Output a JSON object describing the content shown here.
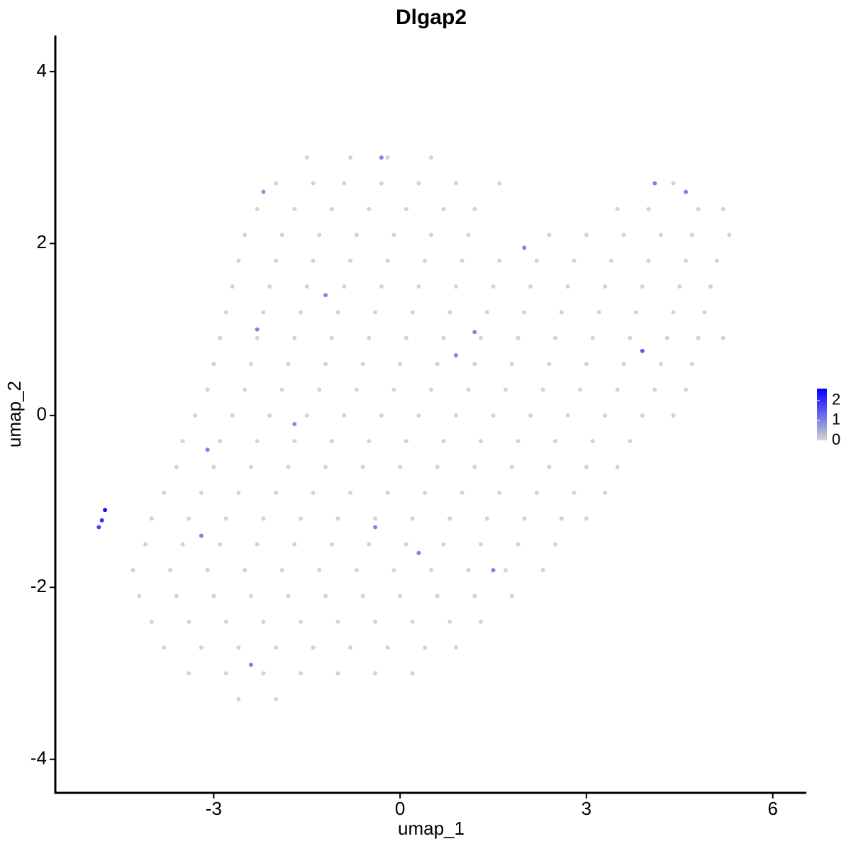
{
  "chart_data": {
    "type": "scatter",
    "title": "Dlgap2",
    "xlabel": "umap_1",
    "ylabel": "umap_2",
    "xlim": [
      -5.55,
      6.54
    ],
    "ylim": [
      -4.39,
      4.42
    ],
    "xticks": [
      -3,
      0,
      3,
      6
    ],
    "yticks": [
      -4,
      -2,
      0,
      2,
      4
    ],
    "grid": false,
    "colorbar": {
      "lim": [
        0,
        2.6
      ],
      "ticks": [
        0,
        1,
        2
      ],
      "low": "#d3d3d3",
      "high": "#0000ff"
    },
    "x": [
      -1.5,
      -0.8,
      -0.2,
      0.5,
      -2.0,
      -1.4,
      -0.9,
      -0.3,
      0.3,
      0.9,
      1.6,
      4.4,
      -2.3,
      -1.7,
      -1.1,
      -0.5,
      0.1,
      0.7,
      1.2,
      3.5,
      4.0,
      4.8,
      5.2,
      -2.5,
      -1.9,
      -1.3,
      -0.7,
      -0.1,
      0.5,
      1.1,
      2.4,
      3.0,
      3.6,
      4.2,
      4.7,
      5.3,
      -2.6,
      -2.0,
      -1.4,
      -0.8,
      -0.2,
      0.4,
      1.0,
      1.6,
      2.2,
      2.8,
      3.4,
      4.0,
      4.6,
      5.1,
      -2.7,
      -2.1,
      -1.5,
      -0.9,
      -0.3,
      0.3,
      0.9,
      1.5,
      2.1,
      2.7,
      3.3,
      3.9,
      4.5,
      5.0,
      -2.8,
      -2.2,
      -1.6,
      -1.0,
      -0.4,
      0.2,
      0.8,
      1.4,
      2.0,
      2.6,
      3.2,
      3.8,
      4.4,
      4.9,
      -2.9,
      -2.3,
      -1.7,
      -1.1,
      -0.5,
      0.1,
      0.7,
      1.3,
      1.9,
      2.5,
      3.1,
      3.7,
      4.3,
      4.8,
      5.2,
      -3.0,
      -2.4,
      -1.8,
      -1.2,
      -0.6,
      0.0,
      0.6,
      1.2,
      1.8,
      2.4,
      3.0,
      3.6,
      4.2,
      4.7,
      -3.1,
      -2.5,
      -1.9,
      -1.3,
      -0.7,
      -0.1,
      0.5,
      1.1,
      1.7,
      2.3,
      2.9,
      3.5,
      4.1,
      4.6,
      -3.3,
      -2.7,
      -2.1,
      -1.5,
      -0.9,
      -0.3,
      0.3,
      0.9,
      1.5,
      2.1,
      2.7,
      3.3,
      3.9,
      4.4,
      -3.5,
      -2.9,
      -2.3,
      -1.7,
      -1.1,
      -0.5,
      0.1,
      0.7,
      1.3,
      1.9,
      2.5,
      3.1,
      3.7,
      -3.6,
      -3.0,
      -2.4,
      -1.8,
      -1.2,
      -0.6,
      0.0,
      0.6,
      1.2,
      1.8,
      2.4,
      3.0,
      3.5,
      -3.8,
      -3.2,
      -2.6,
      -2.0,
      -1.4,
      -0.8,
      -0.2,
      0.4,
      1.0,
      1.6,
      2.2,
      2.8,
      3.3,
      -4.0,
      -3.4,
      -2.8,
      -2.2,
      -1.6,
      -1.0,
      -0.4,
      0.2,
      0.8,
      1.4,
      2.0,
      2.6,
      3.0,
      -4.1,
      -3.5,
      -2.9,
      -2.3,
      -1.7,
      -1.1,
      -0.5,
      0.1,
      0.7,
      1.3,
      1.9,
      2.5,
      -4.3,
      -3.7,
      -3.1,
      -2.5,
      -1.9,
      -1.3,
      -0.7,
      -0.1,
      0.5,
      1.1,
      1.7,
      2.3,
      -4.2,
      -3.6,
      -3.0,
      -2.4,
      -1.8,
      -1.2,
      -0.6,
      0.0,
      0.6,
      1.2,
      1.8,
      -4.0,
      -3.4,
      -2.8,
      -2.2,
      -1.6,
      -1.0,
      -0.4,
      0.2,
      0.8,
      1.3,
      -3.8,
      -3.2,
      -2.6,
      -2.0,
      -1.4,
      -0.8,
      -0.2,
      0.4,
      0.9,
      -3.4,
      -2.8,
      -2.2,
      -1.6,
      -1.0,
      -0.4,
      0.2,
      -2.6,
      -2.0,
      -4.75,
      -4.85,
      -4.8,
      -2.3,
      -3.1,
      -2.4,
      3.9,
      1.2,
      -0.4,
      0.3,
      -1.2,
      4.6,
      -2.2,
      -0.3,
      2.0,
      -3.2,
      1.5,
      0.9,
      4.1,
      -1.7
    ],
    "y": [
      3.0,
      3.0,
      3.0,
      3.0,
      2.7,
      2.7,
      2.7,
      2.7,
      2.7,
      2.7,
      2.7,
      2.7,
      2.4,
      2.4,
      2.4,
      2.4,
      2.4,
      2.4,
      2.4,
      2.4,
      2.4,
      2.4,
      2.4,
      2.1,
      2.1,
      2.1,
      2.1,
      2.1,
      2.1,
      2.1,
      2.1,
      2.1,
      2.1,
      2.1,
      2.1,
      2.1,
      1.8,
      1.8,
      1.8,
      1.8,
      1.8,
      1.8,
      1.8,
      1.8,
      1.8,
      1.8,
      1.8,
      1.8,
      1.8,
      1.8,
      1.5,
      1.5,
      1.5,
      1.5,
      1.5,
      1.5,
      1.5,
      1.5,
      1.5,
      1.5,
      1.5,
      1.5,
      1.5,
      1.5,
      1.2,
      1.2,
      1.2,
      1.2,
      1.2,
      1.2,
      1.2,
      1.2,
      1.2,
      1.2,
      1.2,
      1.2,
      1.2,
      1.2,
      0.9,
      0.9,
      0.9,
      0.9,
      0.9,
      0.9,
      0.9,
      0.9,
      0.9,
      0.9,
      0.9,
      0.9,
      0.9,
      0.9,
      0.9,
      0.6,
      0.6,
      0.6,
      0.6,
      0.6,
      0.6,
      0.6,
      0.6,
      0.6,
      0.6,
      0.6,
      0.6,
      0.6,
      0.6,
      0.3,
      0.3,
      0.3,
      0.3,
      0.3,
      0.3,
      0.3,
      0.3,
      0.3,
      0.3,
      0.3,
      0.3,
      0.3,
      0.3,
      0.0,
      0.0,
      0.0,
      0.0,
      0.0,
      0.0,
      0.0,
      0.0,
      0.0,
      0.0,
      0.0,
      0.0,
      0.0,
      0.0,
      -0.3,
      -0.3,
      -0.3,
      -0.3,
      -0.3,
      -0.3,
      -0.3,
      -0.3,
      -0.3,
      -0.3,
      -0.3,
      -0.3,
      -0.3,
      -0.6,
      -0.6,
      -0.6,
      -0.6,
      -0.6,
      -0.6,
      -0.6,
      -0.6,
      -0.6,
      -0.6,
      -0.6,
      -0.6,
      -0.6,
      -0.9,
      -0.9,
      -0.9,
      -0.9,
      -0.9,
      -0.9,
      -0.9,
      -0.9,
      -0.9,
      -0.9,
      -0.9,
      -0.9,
      -0.9,
      -1.2,
      -1.2,
      -1.2,
      -1.2,
      -1.2,
      -1.2,
      -1.2,
      -1.2,
      -1.2,
      -1.2,
      -1.2,
      -1.2,
      -1.2,
      -1.5,
      -1.5,
      -1.5,
      -1.5,
      -1.5,
      -1.5,
      -1.5,
      -1.5,
      -1.5,
      -1.5,
      -1.5,
      -1.5,
      -1.8,
      -1.8,
      -1.8,
      -1.8,
      -1.8,
      -1.8,
      -1.8,
      -1.8,
      -1.8,
      -1.8,
      -1.8,
      -1.8,
      -2.1,
      -2.1,
      -2.1,
      -2.1,
      -2.1,
      -2.1,
      -2.1,
      -2.1,
      -2.1,
      -2.1,
      -2.1,
      -2.4,
      -2.4,
      -2.4,
      -2.4,
      -2.4,
      -2.4,
      -2.4,
      -2.4,
      -2.4,
      -2.4,
      -2.7,
      -2.7,
      -2.7,
      -2.7,
      -2.7,
      -2.7,
      -2.7,
      -2.7,
      -2.7,
      -3.0,
      -3.0,
      -3.0,
      -3.0,
      -3.0,
      -3.0,
      -3.0,
      -3.3,
      -3.3,
      -1.1,
      -1.3,
      -1.22,
      1.0,
      -0.4,
      -2.9,
      0.75,
      0.97,
      -1.3,
      -1.6,
      1.4,
      2.6,
      2.6,
      3.0,
      1.95,
      -1.4,
      -1.8,
      0.7,
      2.7,
      -0.1
    ],
    "expression": [
      0,
      0,
      0,
      0,
      0,
      0,
      0,
      0,
      0,
      0,
      0,
      0,
      0,
      0,
      0,
      0,
      0,
      0,
      0,
      0,
      0,
      0,
      0,
      0,
      0,
      0,
      0,
      0,
      0,
      0,
      0,
      0,
      0,
      0,
      0,
      0,
      0,
      0,
      0,
      0,
      0,
      0,
      0,
      0,
      0,
      0,
      0,
      0,
      0,
      0,
      0,
      0,
      0,
      0,
      0,
      0,
      0,
      0,
      0,
      0,
      0,
      0,
      0,
      0,
      0,
      0,
      0,
      0,
      0,
      0,
      0,
      0,
      0,
      0,
      0,
      0,
      0,
      0,
      0,
      0,
      0,
      0,
      0,
      0,
      0,
      0,
      0,
      0,
      0,
      0,
      0,
      0,
      0,
      0,
      0,
      0,
      0,
      0,
      0,
      0,
      0,
      0,
      0,
      0,
      0,
      0,
      0,
      0,
      0,
      0,
      0,
      0,
      0,
      0,
      0,
      0,
      0,
      0,
      0,
      0,
      0,
      0,
      0,
      0,
      0,
      0,
      0,
      0,
      0,
      0,
      0,
      0,
      0,
      0,
      0,
      0,
      0,
      0,
      0,
      0,
      0,
      0,
      0,
      0,
      0,
      0,
      0,
      0,
      0,
      0,
      0,
      0,
      0,
      0,
      0,
      0,
      0,
      0,
      0,
      0,
      0,
      0,
      0,
      0,
      0,
      0,
      0,
      0,
      0,
      0,
      0,
      0,
      0,
      0,
      0,
      0,
      0,
      0,
      0,
      0,
      0,
      0,
      0,
      0,
      0,
      0,
      0,
      0,
      0,
      0,
      0,
      0,
      0,
      0,
      0,
      0,
      0,
      0,
      0,
      0,
      0,
      0,
      0,
      0,
      0,
      0,
      0,
      0,
      0,
      0,
      0,
      0,
      0,
      0,
      0,
      0,
      0,
      0,
      0,
      0,
      0,
      0,
      0,
      0,
      0,
      0,
      0,
      0,
      0,
      0,
      0,
      0,
      0,
      0,
      0,
      0,
      0,
      0,
      0,
      0,
      0,
      0,
      0,
      0,
      0,
      0,
      0,
      0,
      0,
      0,
      2.4,
      1.8,
      2.0,
      1,
      1,
      1,
      1.5,
      1,
      1,
      1,
      1,
      1,
      0.8,
      1,
      1,
      1,
      1,
      1,
      1,
      0.9
    ]
  }
}
